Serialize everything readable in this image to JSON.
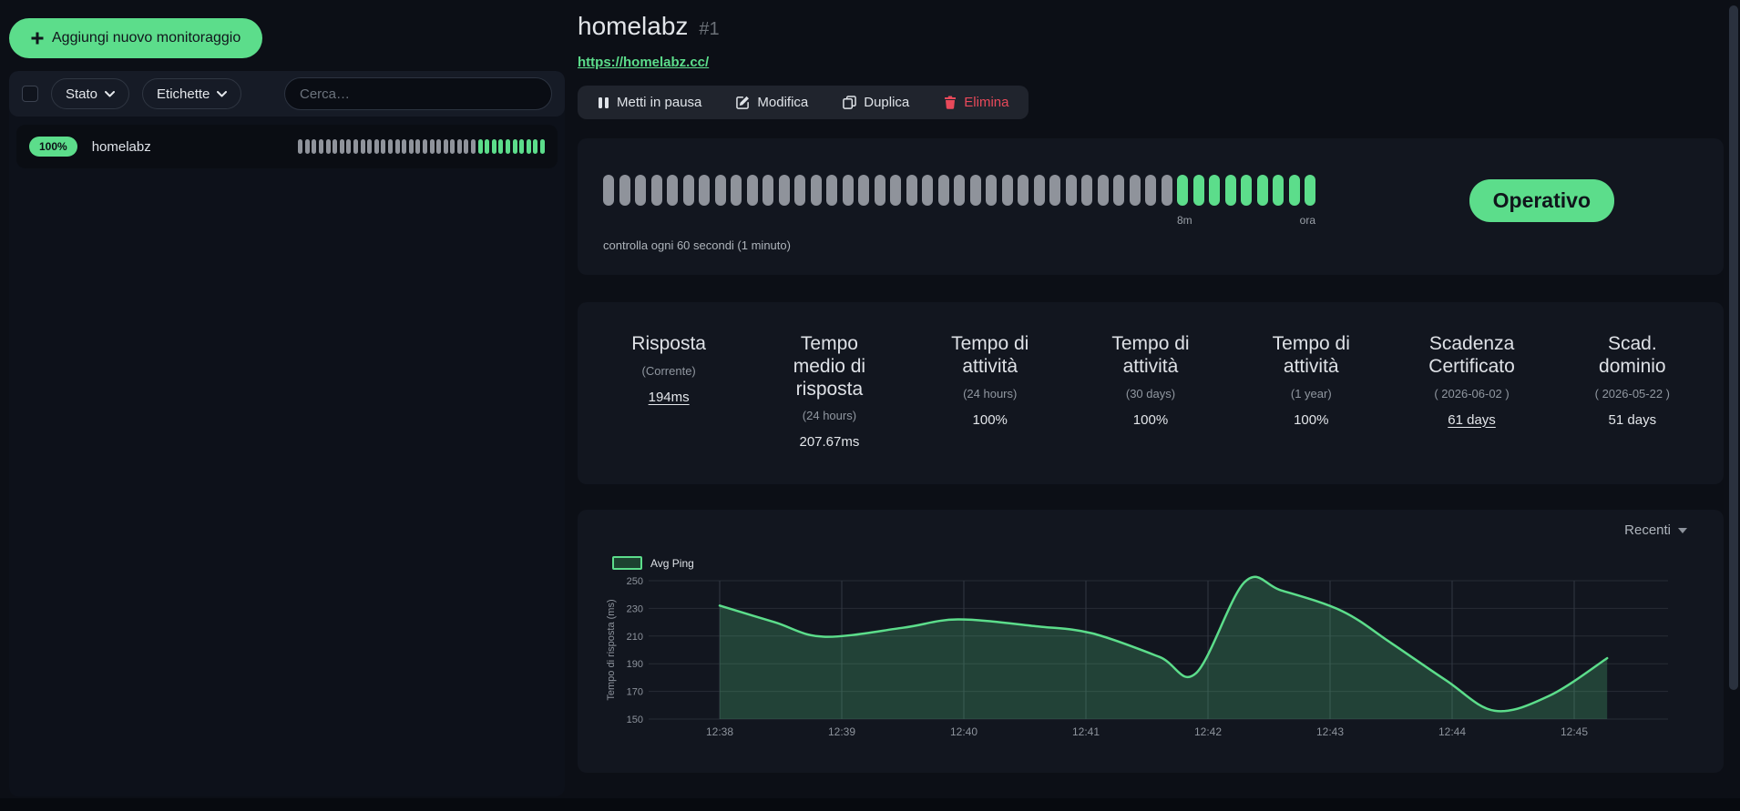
{
  "colors": {
    "accent_green": "#5cdd8b",
    "danger_red": "#e8495a",
    "beat_gray": "#8f939b"
  },
  "sidebar": {
    "add_button_label": "Aggiungi nuovo monitoraggio",
    "filter": {
      "status_label": "Stato",
      "labels_label": "Etichette",
      "search_placeholder": "Cerca…"
    },
    "monitors": [
      {
        "uptime": "100%",
        "name": "homelabz",
        "beats": {
          "gray": 26,
          "green": 10
        }
      }
    ]
  },
  "monitor": {
    "title": "homelabz",
    "number": "#1",
    "url": "https://homelabz.cc/",
    "actions": {
      "pause": "Metti in pausa",
      "edit": "Modifica",
      "duplicate": "Duplica",
      "delete": "Elimina"
    },
    "status_badge": "Operativo",
    "beats": {
      "gray": 36,
      "green": 9,
      "start_label": "8m",
      "end_label": "ora"
    },
    "check_text": "controlla ogni 60 secondi (1 minuto)"
  },
  "stats": [
    {
      "title": "Risposta",
      "subtitle": "(Corrente)",
      "value": "194ms",
      "underline": true
    },
    {
      "title": "Tempo medio di risposta",
      "subtitle": "(24 hours)",
      "value": "207.67ms",
      "underline": false
    },
    {
      "title": "Tempo di attività",
      "subtitle": "(24 hours)",
      "value": "100%",
      "underline": false
    },
    {
      "title": "Tempo di attività",
      "subtitle": "(30 days)",
      "value": "100%",
      "underline": false
    },
    {
      "title": "Tempo di attività",
      "subtitle": "(1 year)",
      "value": "100%",
      "underline": false
    },
    {
      "title": "Scadenza Certificato",
      "subtitle": "( 2026-06-02 )",
      "value": "61 days",
      "underline": true
    },
    {
      "title": "Scad. dominio",
      "subtitle": "( 2026-05-22 )",
      "value": "51 days",
      "underline": false
    }
  ],
  "chart_data": {
    "type": "area",
    "range_selector": "Recenti",
    "legend": "Avg Ping",
    "ylabel": "Tempo di risposta (ms)",
    "ylim": [
      150,
      250
    ],
    "y_ticks": [
      150,
      170,
      190,
      210,
      230,
      250
    ],
    "x_ticks": [
      "12:38",
      "12:39",
      "12:40",
      "12:41",
      "12:42",
      "12:43",
      "12:44",
      "12:45"
    ],
    "grid": true,
    "legend_position": "top-left",
    "line_color": "#5cdd8b",
    "fill_opacity": 0.22,
    "series": [
      {
        "name": "Avg Ping",
        "points": [
          [
            0,
            232
          ],
          [
            0.45,
            220
          ],
          [
            0.85,
            209.5
          ],
          [
            1.5,
            216
          ],
          [
            1.95,
            222
          ],
          [
            2.6,
            217
          ],
          [
            3.05,
            212
          ],
          [
            3.6,
            195
          ],
          [
            3.9,
            183
          ],
          [
            4.3,
            249
          ],
          [
            4.6,
            243
          ],
          [
            5.1,
            228
          ],
          [
            5.5,
            205
          ],
          [
            5.95,
            178
          ],
          [
            6.35,
            156
          ],
          [
            6.8,
            167
          ],
          [
            7.27,
            194
          ]
        ]
      }
    ]
  }
}
